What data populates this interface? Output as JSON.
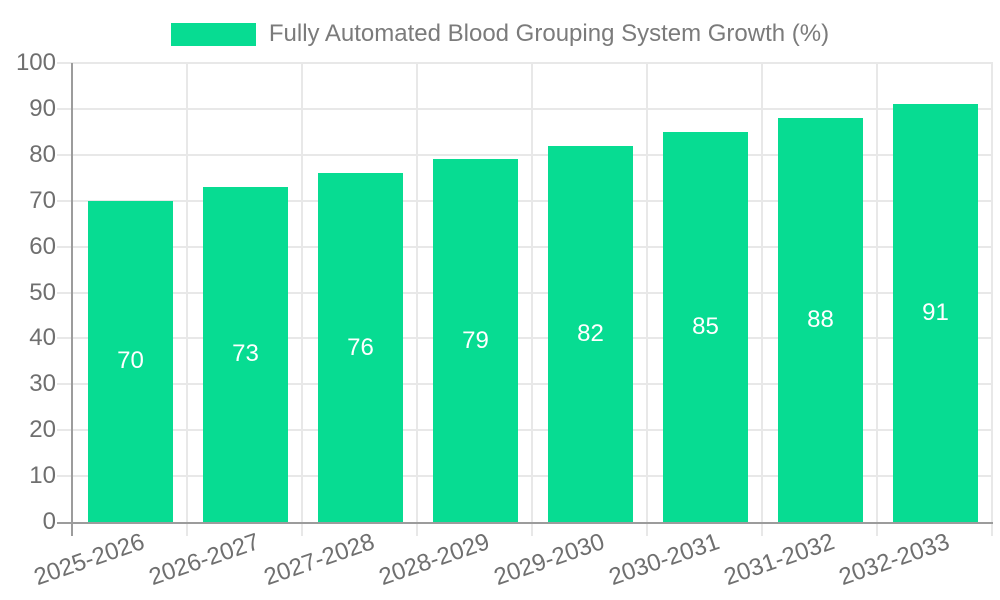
{
  "legend": {
    "label": "Fully Automated Blood Grouping System Growth (%)"
  },
  "chart_data": {
    "type": "bar",
    "title": "",
    "series_name": "Fully Automated Blood Grouping System Growth (%)",
    "categories": [
      "2025-2026",
      "2026-2027",
      "2027-2028",
      "2028-2029",
      "2029-2030",
      "2030-2031",
      "2031-2032",
      "2032-2033"
    ],
    "values": [
      70,
      73,
      76,
      79,
      82,
      85,
      88,
      91
    ],
    "xlabel": "",
    "ylabel": "",
    "ylim": [
      0,
      100
    ],
    "yticks": [
      0,
      10,
      20,
      30,
      40,
      50,
      60,
      70,
      80,
      90,
      100
    ],
    "grid": true,
    "legend_position": "top-center",
    "value_labels_position": "inside-center",
    "x_tick_rotation_deg": -19
  },
  "colors": {
    "bar": "#07DC92",
    "axis": "#9c9c9c",
    "gridline": "#e8e8e8",
    "tick_label": "#6f6f6f",
    "value_label": "#ffffff",
    "legend_text": "#7b7b7b",
    "background": "#ffffff"
  }
}
